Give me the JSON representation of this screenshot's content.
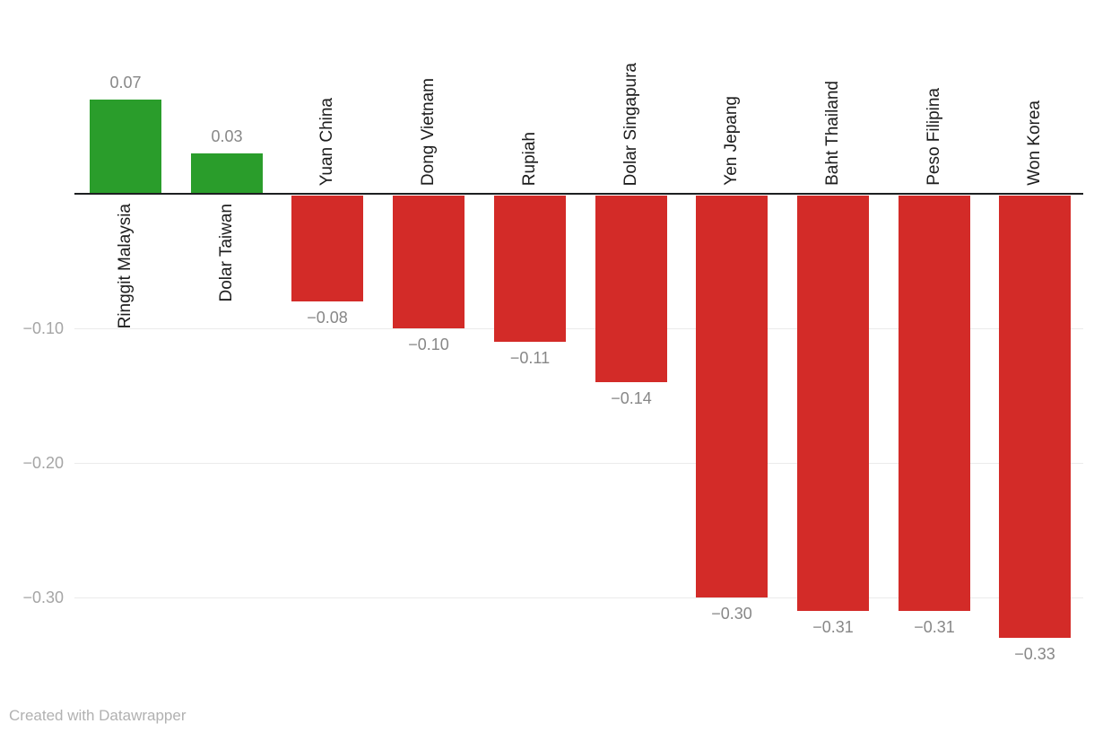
{
  "chart_data": {
    "type": "bar",
    "categories": [
      "Ringgit Malaysia",
      "Dolar Taiwan",
      "Yuan China",
      "Dong Vietnam",
      "Rupiah",
      "Dolar Singapura",
      "Yen Jepang",
      "Baht Thailand",
      "Peso Filipina",
      "Won Korea"
    ],
    "values": [
      0.07,
      0.03,
      -0.08,
      -0.1,
      -0.11,
      -0.14,
      -0.3,
      -0.31,
      -0.31,
      -0.33
    ],
    "value_labels": [
      "0.07",
      "0.03",
      "−0.08",
      "−0.10",
      "−0.11",
      "−0.14",
      "−0.30",
      "−0.31",
      "−0.31",
      "−0.33"
    ],
    "title": "",
    "xlabel": "",
    "ylabel": "",
    "ylim": [
      -0.36,
      0.12
    ],
    "grid": true,
    "legend_position": "none",
    "yticks": [
      {
        "value": -0.1,
        "label": "−0.10"
      },
      {
        "value": -0.2,
        "label": "−0.20"
      },
      {
        "value": -0.3,
        "label": "−0.30"
      }
    ],
    "colors": {
      "positive_bar": "#2a9d2b",
      "negative_bar": "#d32b28",
      "baseline": "#1d1f21",
      "gridline": "#ebebeb",
      "tick_label": "#a5a5a5",
      "value_label": "#878787",
      "category_label": "#1d1d1d"
    }
  },
  "footer": {
    "credit": "Created with Datawrapper"
  }
}
